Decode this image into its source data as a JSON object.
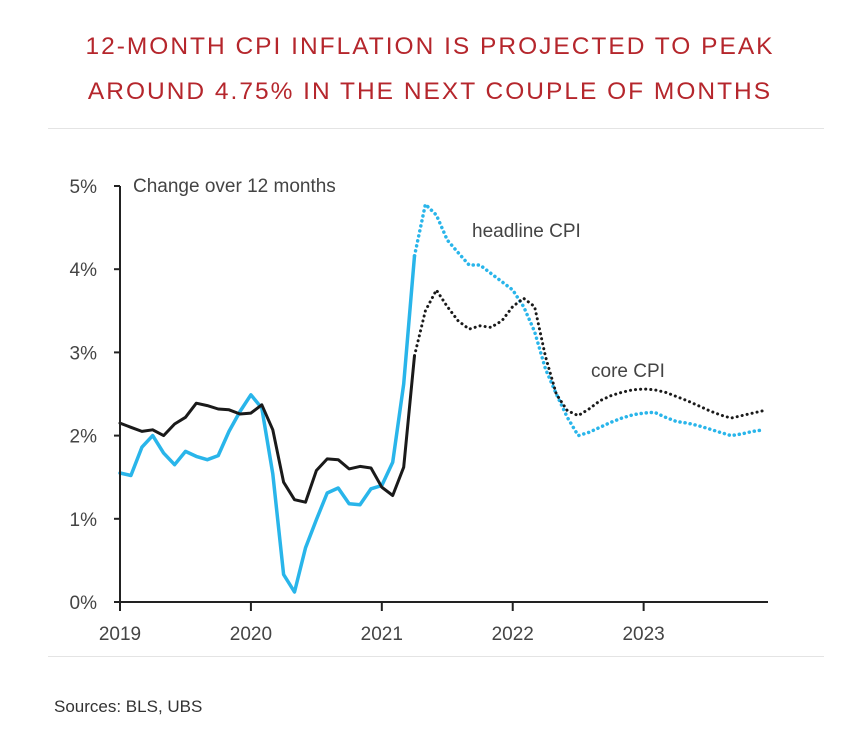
{
  "title_line1": "12-MONTH CPI INFLATION IS PROJECTED TO PEAK",
  "title_line2": "AROUND 4.75% IN THE NEXT COUPLE OF MONTHS",
  "source": "Sources: BLS, UBS",
  "chart_data": {
    "type": "line",
    "subtitle": "Change over 12 months",
    "ylim": [
      0,
      5
    ],
    "xlim": [
      2019,
      2023.95
    ],
    "y_ticks": [
      "0%",
      "1%",
      "2%",
      "3%",
      "4%",
      "5%"
    ],
    "y_tick_values": [
      0,
      1,
      2,
      3,
      4,
      5
    ],
    "x_ticks": [
      "2019",
      "2020",
      "2021",
      "2022",
      "2023"
    ],
    "x_tick_values": [
      2019,
      2020,
      2021,
      2022,
      2023
    ],
    "grid": false,
    "annotations": {
      "headline": "headline CPI",
      "core": "core CPI"
    },
    "colors": {
      "headline": "#29b5ea",
      "core": "#1a1a1a"
    },
    "series": [
      {
        "key": "headline_actual",
        "style": "solid",
        "color": "#29b5ea",
        "x": [
          2019.0,
          2019.083,
          2019.167,
          2019.25,
          2019.333,
          2019.417,
          2019.5,
          2019.583,
          2019.667,
          2019.75,
          2019.833,
          2019.917,
          2020.0,
          2020.083,
          2020.167,
          2020.25,
          2020.333,
          2020.417,
          2020.5,
          2020.583,
          2020.667,
          2020.75,
          2020.833,
          2020.917,
          2021.0,
          2021.083,
          2021.167,
          2021.25
        ],
        "y": [
          1.55,
          1.52,
          1.86,
          2.0,
          1.79,
          1.65,
          1.81,
          1.75,
          1.71,
          1.76,
          2.05,
          2.29,
          2.49,
          2.33,
          1.54,
          0.33,
          0.12,
          0.65,
          0.99,
          1.31,
          1.37,
          1.18,
          1.17,
          1.36,
          1.4,
          1.68,
          2.62,
          4.16
        ]
      },
      {
        "key": "core_actual",
        "style": "solid",
        "color": "#1a1a1a",
        "x": [
          2019.0,
          2019.083,
          2019.167,
          2019.25,
          2019.333,
          2019.417,
          2019.5,
          2019.583,
          2019.667,
          2019.75,
          2019.833,
          2019.917,
          2020.0,
          2020.083,
          2020.167,
          2020.25,
          2020.333,
          2020.417,
          2020.5,
          2020.583,
          2020.667,
          2020.75,
          2020.833,
          2020.917,
          2021.0,
          2021.083,
          2021.167,
          2021.25
        ],
        "y": [
          2.15,
          2.1,
          2.05,
          2.07,
          2.0,
          2.14,
          2.22,
          2.39,
          2.36,
          2.32,
          2.31,
          2.26,
          2.27,
          2.37,
          2.07,
          1.44,
          1.23,
          1.2,
          1.58,
          1.72,
          1.71,
          1.6,
          1.63,
          1.61,
          1.38,
          1.28,
          1.62,
          2.96
        ]
      },
      {
        "key": "headline_projection",
        "style": "dotted",
        "color": "#29b5ea",
        "x": [
          2021.25,
          2021.333,
          2021.417,
          2021.5,
          2021.583,
          2021.667,
          2021.75,
          2021.833,
          2021.917,
          2022.0,
          2022.083,
          2022.167,
          2022.25,
          2022.333,
          2022.417,
          2022.5,
          2022.583,
          2022.667,
          2022.75,
          2022.833,
          2022.917,
          2023.0,
          2023.083,
          2023.167,
          2023.25,
          2023.333,
          2023.417,
          2023.5,
          2023.583,
          2023.667,
          2023.75,
          2023.833,
          2023.917
        ],
        "y": [
          4.16,
          4.78,
          4.65,
          4.35,
          4.2,
          4.05,
          4.05,
          3.95,
          3.85,
          3.75,
          3.55,
          3.25,
          2.8,
          2.5,
          2.22,
          2.0,
          2.04,
          2.1,
          2.16,
          2.21,
          2.25,
          2.27,
          2.28,
          2.22,
          2.17,
          2.15,
          2.12,
          2.08,
          2.04,
          2.0,
          2.02,
          2.05,
          2.07
        ]
      },
      {
        "key": "core_projection",
        "style": "dotted",
        "color": "#1a1a1a",
        "x": [
          2021.25,
          2021.333,
          2021.417,
          2021.5,
          2021.583,
          2021.667,
          2021.75,
          2021.833,
          2021.917,
          2022.0,
          2022.083,
          2022.167,
          2022.25,
          2022.333,
          2022.417,
          2022.5,
          2022.583,
          2022.667,
          2022.75,
          2022.833,
          2022.917,
          2023.0,
          2023.083,
          2023.167,
          2023.25,
          2023.333,
          2023.417,
          2023.5,
          2023.583,
          2023.667,
          2023.75,
          2023.833,
          2023.917
        ],
        "y": [
          2.96,
          3.5,
          3.75,
          3.55,
          3.38,
          3.28,
          3.32,
          3.3,
          3.38,
          3.55,
          3.65,
          3.55,
          2.95,
          2.5,
          2.3,
          2.24,
          2.32,
          2.42,
          2.48,
          2.52,
          2.55,
          2.56,
          2.55,
          2.52,
          2.47,
          2.42,
          2.36,
          2.3,
          2.25,
          2.21,
          2.24,
          2.27,
          2.3
        ]
      }
    ]
  }
}
